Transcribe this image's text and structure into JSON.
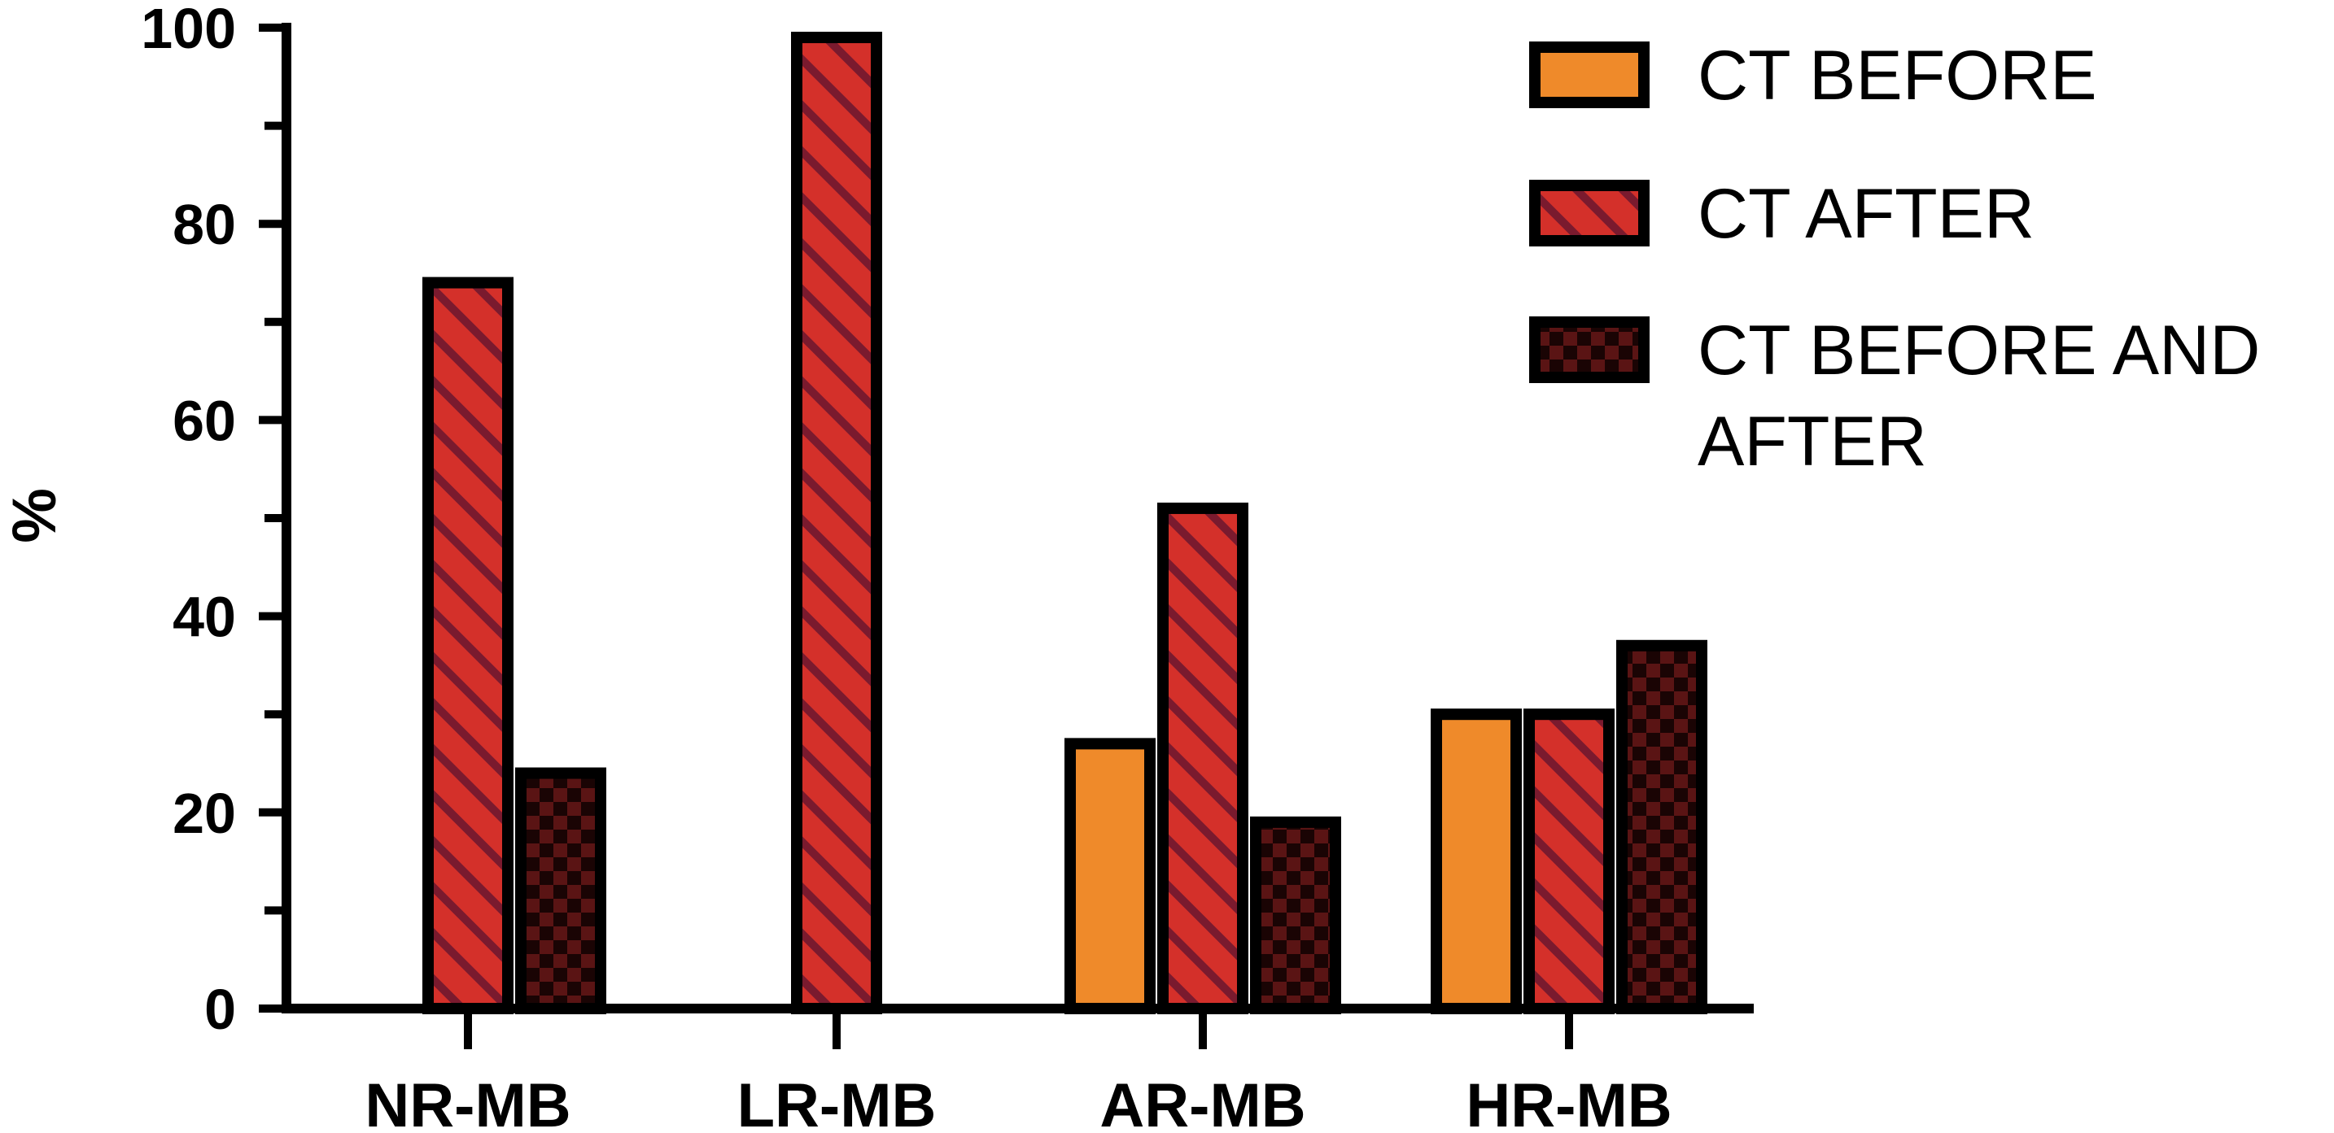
{
  "chart_data": {
    "type": "bar",
    "categories": [
      "NR-MB",
      "LR-MB",
      "AR-MB",
      "HR-MB"
    ],
    "series": [
      {
        "name": "CT BEFORE",
        "values": [
          0,
          0,
          27,
          30
        ],
        "color": "#ef8a2a",
        "pattern": "solid"
      },
      {
        "name": "CT AFTER",
        "values": [
          74,
          99,
          51,
          30
        ],
        "color": "#d4302a",
        "pattern": "diagonal-stripes"
      },
      {
        "name": "CT BEFORE AND AFTER",
        "values": [
          24,
          0,
          19,
          37
        ],
        "color": "#4a1010",
        "pattern": "checkerboard"
      }
    ],
    "ylabel": "%",
    "xlabel": "",
    "ylim": [
      0,
      100
    ],
    "yticks": [
      "0",
      "20",
      "40",
      "60",
      "80",
      "100"
    ],
    "grid": false,
    "legend_position": "top-right"
  }
}
